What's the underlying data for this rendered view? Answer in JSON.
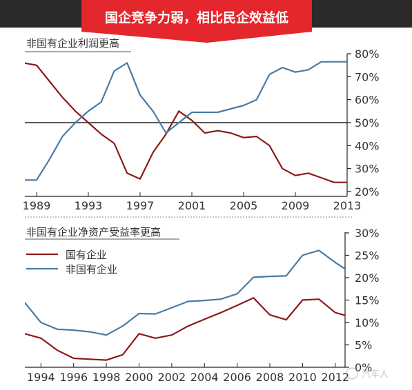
{
  "banner": {
    "title": "国企竞争力弱，相比民企效益低"
  },
  "watermark": "汽车人",
  "colors": {
    "banner_red": "#e4262d",
    "banner_dark": "#2a2a2a",
    "state_owned": "#8b1a1a",
    "non_state": "#4a7aa3",
    "axis": "#222222",
    "text": "#333333"
  },
  "chart_data": [
    {
      "type": "line",
      "title": "非国有企业利润更高",
      "x_ticks": [
        1989,
        1993,
        1997,
        2001,
        2005,
        2009,
        2013
      ],
      "y_ticks": [
        "20%",
        "30%",
        "40%",
        "50%",
        "60%",
        "70%",
        "80%"
      ],
      "ylim": [
        20,
        80
      ],
      "xlim": [
        1988.2,
        2013
      ],
      "y_axis_position": "right",
      "center_line": 50,
      "series": [
        {
          "key": "state_owned",
          "x": [
            1988,
            1989,
            1990,
            1991,
            1992,
            1993,
            1994,
            1995,
            1996,
            1997,
            1998,
            1999,
            2000,
            2001,
            2002,
            2003,
            2004,
            2005,
            2006,
            2007,
            2008,
            2009,
            2010,
            2011,
            2012,
            2013
          ],
          "y": [
            76,
            75,
            68,
            61,
            55,
            50,
            45,
            41,
            28,
            25.5,
            37,
            45,
            55,
            51,
            45.5,
            46.5,
            45.5,
            43.5,
            44,
            40,
            30,
            27,
            28,
            26,
            24,
            24
          ]
        },
        {
          "key": "non_state",
          "x": [
            1988,
            1989,
            1990,
            1991,
            1992,
            1993,
            1994,
            1995,
            1996,
            1997,
            1998,
            1999,
            2000,
            2001,
            2002,
            2003,
            2004,
            2005,
            2006,
            2007,
            2008,
            2009,
            2010,
            2011,
            2012,
            2013
          ],
          "y": [
            25,
            25,
            34,
            44,
            50,
            55,
            59,
            72.5,
            76,
            62,
            55,
            45.5,
            50,
            54.5,
            54.5,
            54.5,
            56,
            57.5,
            60,
            71,
            74,
            72,
            73,
            76.5,
            76.5,
            76.5
          ]
        }
      ]
    },
    {
      "type": "line",
      "title": "非国有企业净资产受益率更高",
      "x_ticks": [
        1994,
        1996,
        1998,
        2000,
        2002,
        2004,
        2006,
        2008,
        2010,
        2012
      ],
      "y_ticks": [
        "0%",
        "5%",
        "10%",
        "15%",
        "20%",
        "25%",
        "30%"
      ],
      "ylim": [
        0,
        30
      ],
      "xlim": [
        1993.1,
        2012.6
      ],
      "y_axis_position": "right",
      "legend": [
        "国有企业",
        "非国有企业"
      ],
      "legend_position": "top-left",
      "series": [
        {
          "key": "state_owned",
          "name": "国有企业",
          "x": [
            1993,
            1994,
            1995,
            1996,
            1997,
            1998,
            1999,
            2000,
            2001,
            2002,
            2003,
            2004,
            2005,
            2006,
            2007,
            2008,
            2009,
            2010,
            2011,
            2012,
            2013
          ],
          "y": [
            7.5,
            6.5,
            3.8,
            2,
            1.8,
            1.6,
            2.8,
            7.5,
            6.5,
            7.2,
            9.2,
            10.7,
            12.2,
            13.8,
            15.5,
            11.7,
            10.6,
            15,
            15.2,
            12.2,
            11.2
          ]
        },
        {
          "key": "non_state",
          "name": "非国有企业",
          "x": [
            1993,
            1994,
            1995,
            1996,
            1997,
            1998,
            1999,
            2000,
            2001,
            2002,
            2003,
            2004,
            2005,
            2006,
            2007,
            2008,
            2009,
            2010,
            2011,
            2012,
            2013
          ],
          "y": [
            14.5,
            10,
            8.5,
            8.3,
            7.9,
            7.2,
            9.2,
            12,
            11.9,
            13.3,
            14.7,
            14.9,
            15.2,
            16.4,
            20.1,
            20.3,
            20.4,
            25,
            26.1,
            23.4,
            21
          ]
        }
      ]
    }
  ]
}
